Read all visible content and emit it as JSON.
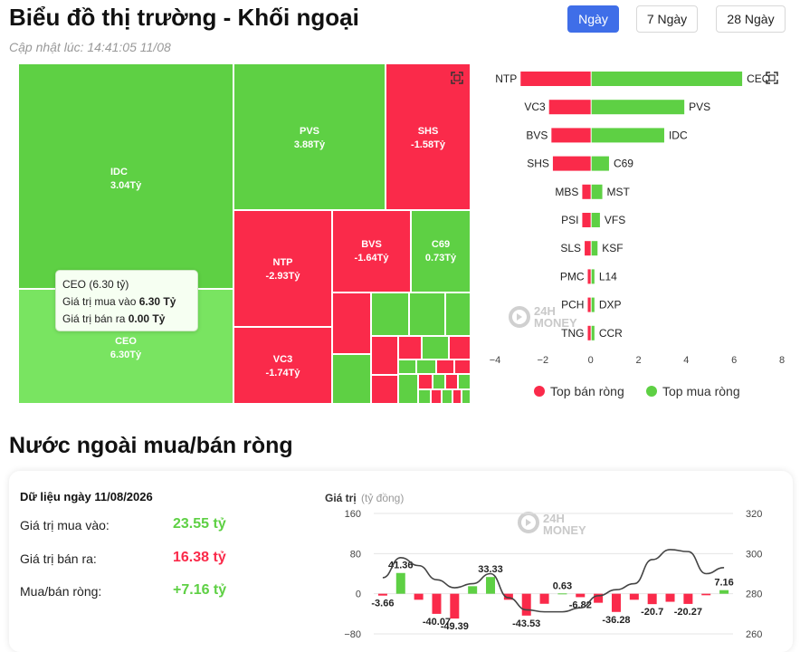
{
  "header": {
    "title": "Biểu đồ thị trường - Khối ngoại",
    "updated": "Cập nhật lúc: 14:41:05 11/08",
    "ranges": [
      {
        "label": "Ngày",
        "active": true
      },
      {
        "label": "7 Ngày",
        "active": false
      },
      {
        "label": "28 Ngày",
        "active": false
      }
    ]
  },
  "treemap": {
    "tiles": [
      {
        "code": "IDC",
        "value": "3.04Tỷ",
        "side": "buy"
      },
      {
        "code": "PVS",
        "value": "3.88Tỷ",
        "side": "buy"
      },
      {
        "code": "SHS",
        "value": "-1.58Tỷ",
        "side": "sell"
      },
      {
        "code": "NTP",
        "value": "-2.93Tỷ",
        "side": "sell"
      },
      {
        "code": "BVS",
        "value": "-1.64Tỷ",
        "side": "sell"
      },
      {
        "code": "C69",
        "value": "0.73Tỷ",
        "side": "buy"
      },
      {
        "code": "VC3",
        "value": "-1.74Tỷ",
        "side": "sell"
      },
      {
        "code": "CEO",
        "value": "6.30Tỷ",
        "side": "buy"
      }
    ],
    "tooltip": {
      "title": "CEO (6.30 tỷ)",
      "buy_label": "Giá trị mua vào",
      "buy_value": "6.30 Tỷ",
      "sell_label": "Giá trị bán ra",
      "sell_value": "0.00 Tỷ"
    }
  },
  "top_chart": {
    "rows": [
      {
        "sell_code": "NTP",
        "sell": -2.93,
        "buy_code": "CEO",
        "buy": 6.3
      },
      {
        "sell_code": "VC3",
        "sell": -1.74,
        "buy_code": "PVS",
        "buy": 3.88
      },
      {
        "sell_code": "BVS",
        "sell": -1.64,
        "buy_code": "IDC",
        "buy": 3.04
      },
      {
        "sell_code": "SHS",
        "sell": -1.58,
        "buy_code": "C69",
        "buy": 0.73
      },
      {
        "sell_code": "MBS",
        "sell": -0.35,
        "buy_code": "MST",
        "buy": 0.45
      },
      {
        "sell_code": "PSI",
        "sell": -0.35,
        "buy_code": "VFS",
        "buy": 0.35
      },
      {
        "sell_code": "SLS",
        "sell": -0.25,
        "buy_code": "KSF",
        "buy": 0.25
      },
      {
        "sell_code": "PMC",
        "sell": -0.12,
        "buy_code": "L14",
        "buy": 0.12
      },
      {
        "sell_code": "PCH",
        "sell": -0.12,
        "buy_code": "DXP",
        "buy": 0.12
      },
      {
        "sell_code": "TNG",
        "sell": -0.12,
        "buy_code": "CCR",
        "buy": 0.12
      }
    ],
    "x_ticks": [
      "−4",
      "−2",
      "0",
      "2",
      "4",
      "6",
      "8"
    ],
    "xlim": [
      -4,
      8
    ],
    "legend_sell": "Top bán ròng",
    "legend_buy": "Top mua ròng",
    "sell_color": "#fa2a4a",
    "buy_color": "#5ed044"
  },
  "watermark": {
    "top": "24H",
    "bottom": "MONEY"
  },
  "section": {
    "title": "Nước ngoài mua/bán ròng"
  },
  "summary": {
    "heading": "Dữ liệu ngày 11/08/2026",
    "buy_label": "Giá trị mua vào:",
    "buy_value": "23.55 tỷ",
    "sell_label": "Giá trị bán ra:",
    "sell_value": "16.38 tỷ",
    "net_label": "Mua/bán ròng:",
    "net_value": "+7.16 tỷ"
  },
  "chart_data": {
    "type": "bar",
    "ylabel": "Giá trị",
    "ylabel_unit": "(tỷ đồng)",
    "y_left_ticks": [
      "160",
      "80",
      "0",
      "−80"
    ],
    "y_right_ticks": [
      "320",
      "300",
      "280",
      "260"
    ],
    "ylim": [
      -80,
      160
    ],
    "y2lim": [
      260,
      320
    ],
    "bars": [
      -3.66,
      41.36,
      -12,
      -40.07,
      -49.39,
      15,
      33.33,
      -12,
      -43.53,
      -20,
      0.63,
      -6.82,
      -18,
      -36.28,
      -12,
      -20.7,
      -16,
      -20.27,
      -3,
      7.16
    ],
    "labels": [
      "-3.66",
      "41.36",
      "",
      "-40.07",
      "-49.39",
      "",
      "33.33",
      "",
      "-43.53",
      "",
      "0.63",
      "-6.82",
      "",
      "-36.28",
      "",
      "-20.7",
      "",
      "-20.27",
      "",
      "7.16"
    ],
    "index_line": [
      288,
      298,
      294,
      287,
      283,
      285,
      290,
      278,
      272,
      271,
      271,
      273,
      279,
      282,
      285,
      297,
      302,
      301,
      290,
      293
    ]
  }
}
